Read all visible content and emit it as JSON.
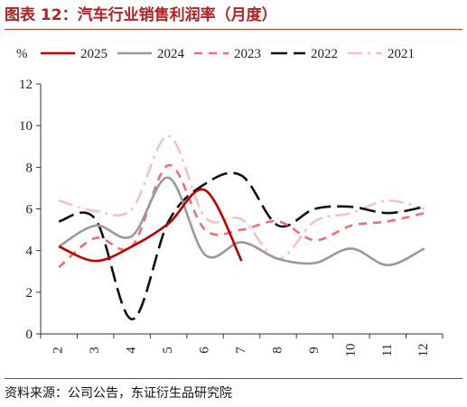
{
  "figure": {
    "title": "图表 12：汽车行业销售利润率（月度）",
    "source": "资料来源：公司公告，东证衍生品研究院"
  },
  "chart_data": {
    "type": "line",
    "unit": "%",
    "categories": [
      "2",
      "3",
      "4",
      "5",
      "6",
      "7",
      "8",
      "9",
      "10",
      "11",
      "12"
    ],
    "y_ticks": [
      "0",
      "2",
      "4",
      "6",
      "8",
      "10",
      "12"
    ],
    "ylim": [
      0,
      12
    ],
    "grid": false,
    "legend_position": "top",
    "series": [
      {
        "name": "2025",
        "color": "#c00000",
        "dash": "solid",
        "values": [
          4.2,
          3.5,
          4.2,
          5.3,
          6.9,
          3.5,
          null,
          null,
          null,
          null,
          null
        ]
      },
      {
        "name": "2024",
        "color": "#999999",
        "dash": "solid",
        "values": [
          4.2,
          5.2,
          4.7,
          7.5,
          3.8,
          4.4,
          3.6,
          3.4,
          4.1,
          3.3,
          4.1
        ]
      },
      {
        "name": "2023",
        "color": "#f07070",
        "dash": "dash",
        "values": [
          3.2,
          4.6,
          4.2,
          8.1,
          5.0,
          5.0,
          5.4,
          4.5,
          5.2,
          5.4,
          5.8
        ]
      },
      {
        "name": "2022",
        "color": "#111111",
        "dash": "longdash",
        "values": [
          5.4,
          5.5,
          0.7,
          5.4,
          7.2,
          7.6,
          5.2,
          6.0,
          6.1,
          5.8,
          6.1
        ]
      },
      {
        "name": "2021",
        "color": "#f4c2c2",
        "dash": "dashdot",
        "values": [
          6.4,
          5.9,
          6.0,
          9.5,
          5.6,
          5.5,
          3.6,
          5.4,
          5.8,
          6.4,
          6.0
        ]
      }
    ]
  }
}
